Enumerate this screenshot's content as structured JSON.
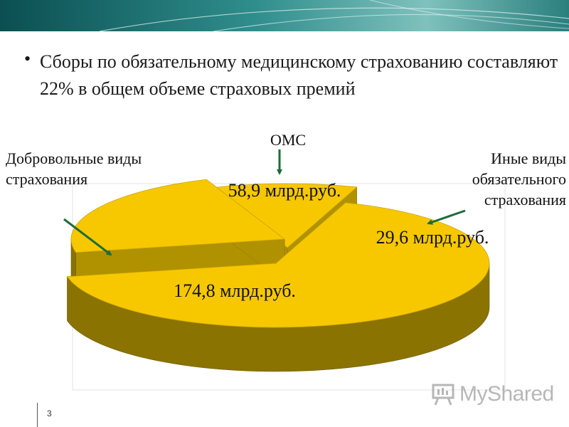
{
  "header": {
    "bullet": "•",
    "text": "Сборы по обязательному медицинскому страхованию составляют 22% в общем объеме страховых премий"
  },
  "chart_data": {
    "type": "pie",
    "slices": [
      {
        "name": "Добровольные виды страхования",
        "value": 174.8,
        "data_label": "174,8 млрд.руб."
      },
      {
        "name": "ОМС",
        "value": 58.9,
        "data_label": "58,9 млрд.руб."
      },
      {
        "name": "Иные виды обязательного страхования",
        "value": 29.6,
        "data_label": "29,6 млрд.руб."
      }
    ],
    "annotations": {
      "voluntary": "Добровольные виды страхования",
      "oms": "ОМС",
      "other": "Иные виды обязательного страхования"
    },
    "style": "3d-exploded",
    "colors": {
      "top": "#f7c800",
      "side": "#8a7300",
      "edge": "#b09200",
      "arrow": "#1f6b3a"
    }
  },
  "footer": {
    "slide_number": "3",
    "watermark_icon": "presentation-board-icon",
    "watermark_text": "MyShared"
  },
  "theme": {
    "banner_dark": "#0b4f52",
    "banner_light": "#6fb3b0"
  }
}
